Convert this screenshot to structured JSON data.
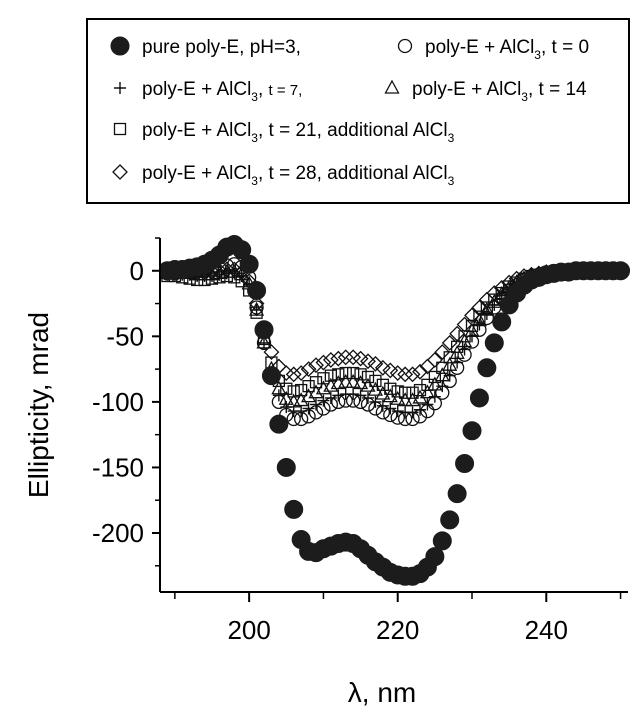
{
  "chart_data": {
    "type": "scatter",
    "xlabel": "λ, nm",
    "ylabel": "Ellipticity, mrad",
    "xlim": [
      188,
      251
    ],
    "ylim": [
      -245,
      25
    ],
    "xticks": [
      "200",
      "220",
      "240"
    ],
    "yticks": [
      "0",
      "-50",
      "-100",
      "-150",
      "-200"
    ],
    "legend_position": "top",
    "legend": [
      {
        "parts": [
          "pure poly-E, pH=3,"
        ],
        "marker": "filled-circle"
      },
      {
        "parts": [
          "poly-E + AlCl",
          "3",
          ", t = 0"
        ],
        "marker": "open-circle"
      },
      {
        "parts": [
          "poly-E + AlCl",
          "3",
          ", ",
          "t = 7,"
        ],
        "marker": "plus"
      },
      {
        "parts": [
          "poly-E + AlCl",
          "3",
          ", t = 14"
        ],
        "marker": "triangle"
      },
      {
        "parts": [
          "poly-E + AlCl",
          "3",
          ", t = 21, additional AlCl",
          "3"
        ],
        "marker": "square"
      },
      {
        "parts": [
          "poly-E + AlCl",
          "3",
          ", t = 28, additional AlCl",
          "3"
        ],
        "marker": "diamond"
      }
    ],
    "series": [
      {
        "marker": "filled-circle",
        "x": [
          189,
          190,
          191,
          192,
          193,
          194,
          195,
          196,
          197,
          198,
          199,
          200,
          201,
          202,
          203,
          204,
          205,
          206,
          207,
          208,
          209,
          210,
          211,
          212,
          213,
          214,
          215,
          216,
          217,
          218,
          219,
          220,
          221,
          222,
          223,
          224,
          225,
          226,
          227,
          228,
          229,
          230,
          231,
          232,
          233,
          234,
          235,
          236,
          237,
          238,
          239,
          240,
          241,
          242,
          243,
          244,
          245,
          246,
          247,
          248,
          249,
          250
        ],
        "y": [
          0,
          1,
          1,
          2,
          3,
          5,
          8,
          12,
          18,
          20,
          16,
          5,
          -15,
          -45,
          -80,
          -117,
          -150,
          -182,
          -205,
          -214,
          -215,
          -212,
          -210,
          -208,
          -207,
          -208,
          -212,
          -217,
          -222,
          -226,
          -230,
          -232,
          -233,
          -233,
          -231,
          -226,
          -218,
          -206,
          -190,
          -170,
          -147,
          -122,
          -97,
          -74,
          -55,
          -39,
          -26,
          -17,
          -11,
          -7,
          -5,
          -3,
          -2,
          -1,
          -1,
          0,
          0,
          0,
          0,
          0,
          0,
          0
        ]
      },
      {
        "marker": "open-circle",
        "x": [
          189,
          190,
          191,
          192,
          193,
          194,
          195,
          196,
          197,
          198,
          199,
          200,
          201,
          202,
          203,
          204,
          205,
          206,
          207,
          208,
          209,
          210,
          211,
          212,
          213,
          214,
          215,
          216,
          217,
          218,
          219,
          220,
          221,
          222,
          223,
          224,
          225,
          226,
          227,
          228,
          229,
          230,
          231,
          232,
          233,
          234,
          235,
          236,
          237,
          238,
          239,
          240,
          241,
          242,
          243,
          244,
          245,
          246,
          247,
          248,
          249,
          250
        ],
        "y": [
          -2,
          -2,
          -1,
          -1,
          0,
          0,
          1,
          2,
          4,
          5,
          3,
          -5,
          -28,
          -55,
          -80,
          -100,
          -110,
          -113,
          -113,
          -111,
          -108,
          -105,
          -102,
          -100,
          -99,
          -99,
          -100,
          -102,
          -105,
          -108,
          -110,
          -112,
          -113,
          -113,
          -111,
          -107,
          -101,
          -93,
          -84,
          -74,
          -64,
          -54,
          -45,
          -36,
          -28,
          -21,
          -15,
          -11,
          -7,
          -5,
          -3,
          -2,
          -1,
          -1,
          0,
          0,
          0,
          0,
          0,
          0,
          0,
          0
        ]
      },
      {
        "marker": "plus",
        "x": [
          189,
          190,
          191,
          192,
          193,
          194,
          195,
          196,
          197,
          198,
          199,
          200,
          201,
          202,
          203,
          204,
          205,
          206,
          207,
          208,
          209,
          210,
          211,
          212,
          213,
          214,
          215,
          216,
          217,
          218,
          219,
          220,
          221,
          222,
          223,
          224,
          225,
          226,
          227,
          228,
          229,
          230,
          231,
          232,
          233,
          234,
          235,
          236,
          237,
          238,
          239,
          240,
          241,
          242,
          243,
          244,
          245,
          246,
          247,
          248,
          249,
          250
        ],
        "y": [
          -3,
          -3,
          -3,
          -3,
          -4,
          -4,
          -4,
          -3,
          -2,
          -2,
          -4,
          -10,
          -30,
          -55,
          -78,
          -95,
          -104,
          -107,
          -107,
          -105,
          -102,
          -99,
          -97,
          -95,
          -94,
          -94,
          -95,
          -97,
          -100,
          -103,
          -105,
          -107,
          -108,
          -108,
          -106,
          -102,
          -96,
          -88,
          -80,
          -70,
          -60,
          -50,
          -41,
          -33,
          -26,
          -19,
          -14,
          -10,
          -7,
          -5,
          -3,
          -2,
          -1,
          -1,
          0,
          0,
          0,
          0,
          0,
          0,
          0,
          0
        ]
      },
      {
        "marker": "triangle",
        "x": [
          189,
          190,
          191,
          192,
          193,
          194,
          195,
          196,
          197,
          198,
          199,
          200,
          201,
          202,
          203,
          204,
          205,
          206,
          207,
          208,
          209,
          210,
          211,
          212,
          213,
          214,
          215,
          216,
          217,
          218,
          219,
          220,
          221,
          222,
          223,
          224,
          225,
          226,
          227,
          228,
          229,
          230,
          231,
          232,
          233,
          234,
          235,
          236,
          237,
          238,
          239,
          240,
          241,
          242,
          243,
          244,
          245,
          246,
          247,
          248,
          249,
          250
        ],
        "y": [
          -2,
          -2,
          -2,
          -2,
          -3,
          -3,
          -3,
          -2,
          -1,
          -1,
          -3,
          -10,
          -30,
          -55,
          -75,
          -90,
          -98,
          -100,
          -99,
          -96,
          -93,
          -90,
          -88,
          -86,
          -85,
          -85,
          -86,
          -88,
          -91,
          -94,
          -96,
          -98,
          -99,
          -99,
          -97,
          -93,
          -87,
          -80,
          -72,
          -63,
          -54,
          -46,
          -38,
          -30,
          -24,
          -18,
          -13,
          -9,
          -6,
          -4,
          -3,
          -2,
          -1,
          -1,
          0,
          0,
          0,
          0,
          0,
          0,
          0,
          0
        ]
      },
      {
        "marker": "square",
        "x": [
          189,
          190,
          191,
          192,
          193,
          194,
          195,
          196,
          197,
          198,
          199,
          200,
          201,
          202,
          203,
          204,
          205,
          206,
          207,
          208,
          209,
          210,
          211,
          212,
          213,
          214,
          215,
          216,
          217,
          218,
          219,
          220,
          221,
          222,
          223,
          224,
          225,
          226,
          227,
          228,
          229,
          230,
          231,
          232,
          233,
          234,
          235,
          236,
          237,
          238,
          239,
          240,
          241,
          242,
          243,
          244,
          245,
          246,
          247,
          248,
          249,
          250
        ],
        "y": [
          -4,
          -4,
          -5,
          -6,
          -7,
          -7,
          -6,
          -5,
          -4,
          -5,
          -8,
          -15,
          -32,
          -52,
          -70,
          -84,
          -90,
          -92,
          -91,
          -88,
          -85,
          -82,
          -80,
          -79,
          -78,
          -78,
          -79,
          -81,
          -84,
          -87,
          -90,
          -92,
          -93,
          -93,
          -91,
          -87,
          -81,
          -74,
          -66,
          -58,
          -50,
          -42,
          -35,
          -28,
          -22,
          -17,
          -12,
          -9,
          -6,
          -4,
          -3,
          -2,
          -1,
          -1,
          0,
          0,
          0,
          0,
          0,
          0,
          0,
          0
        ]
      },
      {
        "marker": "diamond",
        "x": [
          189,
          190,
          191,
          192,
          193,
          194,
          195,
          196,
          197,
          198,
          199,
          200,
          201,
          202,
          203,
          204,
          205,
          206,
          207,
          208,
          209,
          210,
          211,
          212,
          213,
          214,
          215,
          216,
          217,
          218,
          219,
          220,
          221,
          222,
          223,
          224,
          225,
          226,
          227,
          228,
          229,
          230,
          231,
          232,
          233,
          234,
          235,
          236,
          237,
          238,
          239,
          240,
          241,
          242,
          243,
          244,
          245,
          246,
          247,
          248,
          249,
          250
        ],
        "y": [
          -1,
          -1,
          -1,
          -1,
          -2,
          -2,
          -1,
          0,
          1,
          1,
          -1,
          -8,
          -25,
          -45,
          -62,
          -73,
          -78,
          -79,
          -78,
          -75,
          -72,
          -70,
          -68,
          -67,
          -66,
          -66,
          -67,
          -69,
          -71,
          -74,
          -76,
          -78,
          -79,
          -79,
          -77,
          -73,
          -68,
          -62,
          -55,
          -48,
          -41,
          -34,
          -28,
          -22,
          -17,
          -13,
          -9,
          -6,
          -4,
          -3,
          -2,
          -1,
          -1,
          0,
          0,
          0,
          0,
          0,
          0,
          0,
          0,
          0
        ]
      }
    ]
  }
}
